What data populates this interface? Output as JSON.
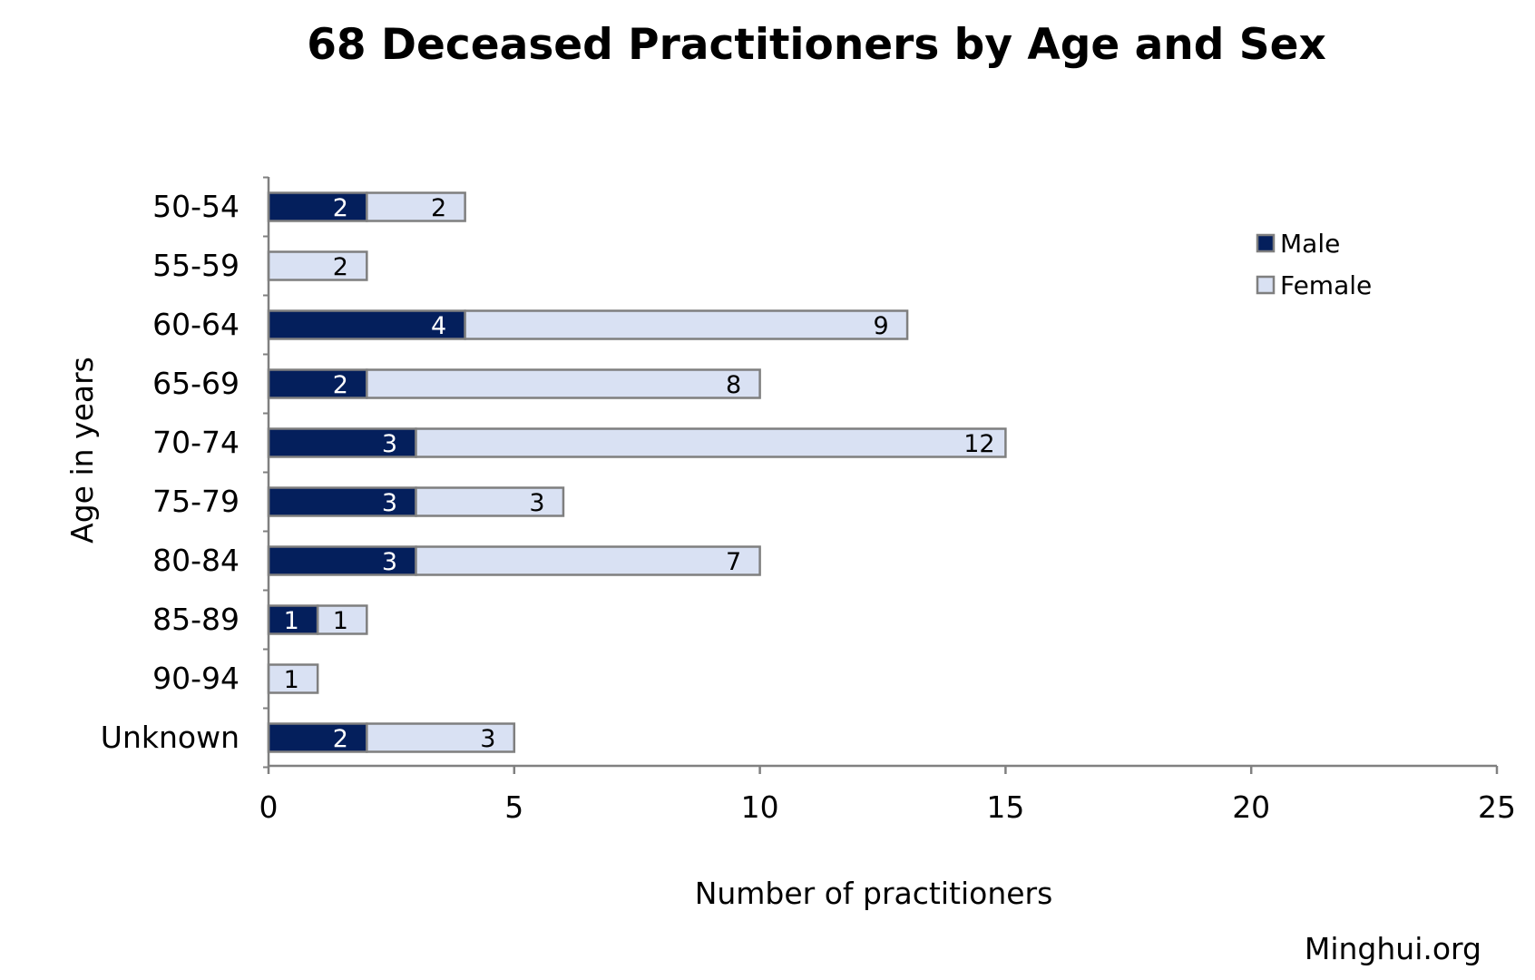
{
  "chart_data": {
    "type": "bar",
    "orientation": "horizontal",
    "stacked": true,
    "title": "68 Deceased Practitioners by Age and Sex",
    "xlabel": "Number of practitioners",
    "ylabel": "Age in years",
    "xlim": [
      0,
      25
    ],
    "x_ticks": [
      "0",
      "5",
      "10",
      "15",
      "20",
      "25"
    ],
    "categories": [
      "50-54",
      "55-59",
      "60-64",
      "65-69",
      "70-74",
      "75-79",
      "80-84",
      "85-89",
      "90-94",
      "Unknown"
    ],
    "series": [
      {
        "name": "Male",
        "color": "#041f5c",
        "label_color": "#ffffff",
        "values": [
          2,
          0,
          4,
          2,
          3,
          3,
          3,
          1,
          0,
          2
        ]
      },
      {
        "name": "Female",
        "color": "#d9e1f3",
        "label_color": "#000000",
        "values": [
          2,
          2,
          9,
          8,
          12,
          3,
          7,
          1,
          1,
          3
        ]
      }
    ],
    "grid": false,
    "legend_position": "top-right",
    "bar_outline_color": "#7f7f7f",
    "axis_color": "#808080"
  },
  "source": "Minghui.org"
}
